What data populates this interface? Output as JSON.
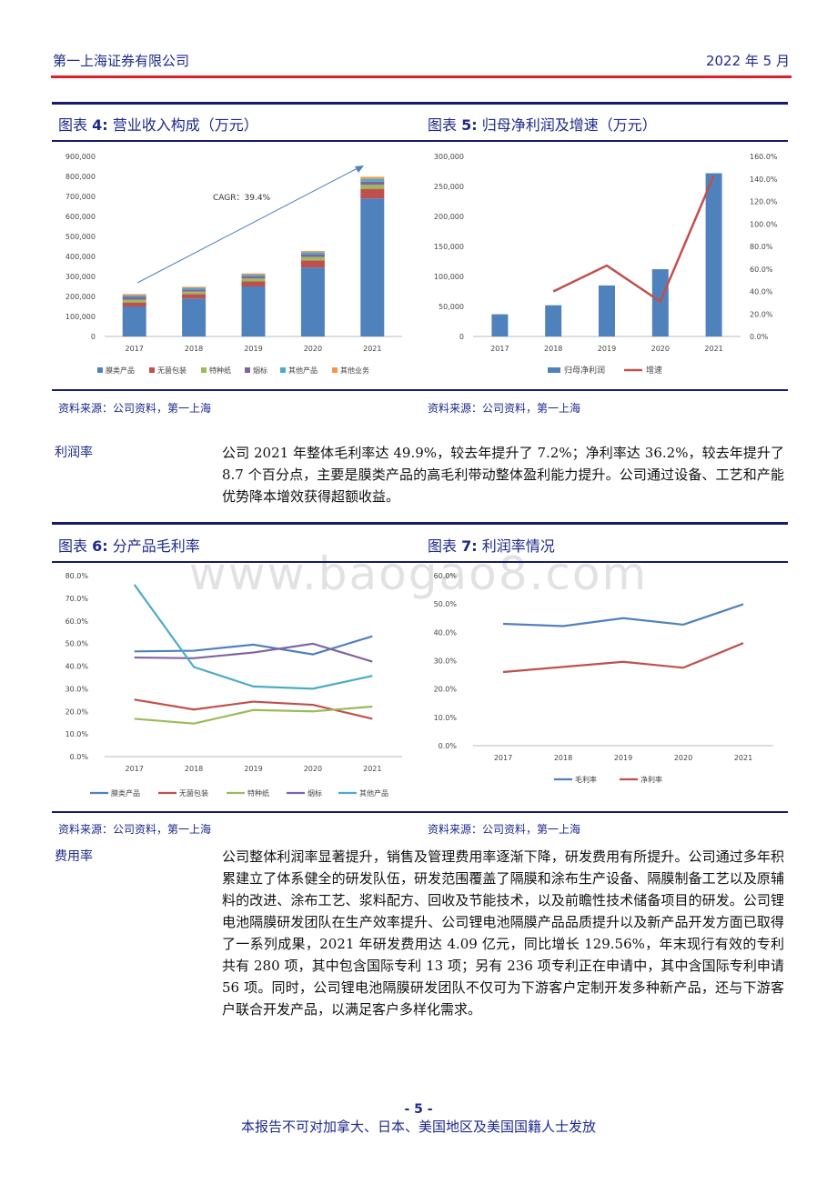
{
  "header": {
    "company": "第一上海证券有限公司",
    "date": "2022 年 5 月"
  },
  "watermark": "www.baogao8.com",
  "figures": [
    {
      "num": "4:",
      "label_prefix": "图表 ",
      "title": "营业收入构成（万元）",
      "source": "资料来源：公司资料，第一上海",
      "annotation": "CAGR：39.4%"
    },
    {
      "num": "5:",
      "label_prefix": "图表 ",
      "title": "归母净利润及增速（万元）",
      "source": "资料来源：公司资料，第一上海"
    },
    {
      "num": "6:",
      "label_prefix": "图表 ",
      "title": "分产品毛利率",
      "source": "资料来源：公司资料，第一上海"
    },
    {
      "num": "7:",
      "label_prefix": "图表 ",
      "title": "利润率情况",
      "source": "资料来源：公司资料，第一上海"
    }
  ],
  "sections": {
    "profit": {
      "label": "利润率",
      "text": "公司 2021 年整体毛利率达 49.9%，较去年提升了 7.2%；净利率达 36.2%，较去年提升了 8.7 个百分点，主要是膜类产品的高毛利带动整体盈利能力提升。公司通过设备、工艺和产能优势降本增效获得超额收益。"
    },
    "expense": {
      "label": "费用率",
      "text": "公司整体利润率显著提升，销售及管理费用率逐渐下降，研发费用有所提升。公司通过多年积累建立了体系健全的研发队伍，研发范围覆盖了隔膜和涂布生产设备、隔膜制备工艺以及原辅料的改进、涂布工艺、浆料配方、回收及节能技术，以及前瞻性技术储备项目的研发。公司锂电池隔膜研发团队在生产效率提升、公司锂电池隔膜产品品质提升以及新产品开发方面已取得了一系列成果，2021 年研发费用达 4.09 亿元，同比增长 129.56%，年末现行有效的专利共有 280 项，其中包含国际专利 13 项；另有 236 项专利正在申请中，其中含国际专利申请 56 项。同时，公司锂电池隔膜研发团队不仅可为下游客户定制开发多种新产品，还与下游客户联合开发产品，以满足客户多样化需求。"
    }
  },
  "footer": {
    "page": "- 5 -",
    "notice": "本报告不可对加拿大、日本、美国地区及美国国籍人士发放"
  },
  "chart_data": [
    {
      "type": "bar",
      "stacked": true,
      "categories": [
        "2017",
        "2018",
        "2019",
        "2020",
        "2021"
      ],
      "ylim": [
        0,
        900000
      ],
      "yticks": [
        "0",
        "100,000",
        "200,000",
        "300,000",
        "400,000",
        "500,000",
        "600,000",
        "700,000",
        "800,000",
        "900,000"
      ],
      "series": [
        {
          "name": "膜类产品",
          "color": "#4f81bd",
          "values": [
            150000,
            190000,
            250000,
            345000,
            690000
          ]
        },
        {
          "name": "无菌包装",
          "color": "#c0504d",
          "values": [
            20000,
            22000,
            25000,
            35000,
            48000
          ]
        },
        {
          "name": "特种纸",
          "color": "#9bbb59",
          "values": [
            14000,
            12000,
            15000,
            17000,
            20000
          ]
        },
        {
          "name": "烟标",
          "color": "#8064a2",
          "values": [
            14000,
            11000,
            11000,
            14000,
            16000
          ]
        },
        {
          "name": "其他产品",
          "color": "#4bacc6",
          "values": [
            8000,
            8000,
            8000,
            10000,
            14000
          ]
        },
        {
          "name": "其他业务",
          "color": "#f79646",
          "values": [
            6000,
            5000,
            6000,
            6000,
            10000
          ]
        }
      ]
    },
    {
      "type": "bar",
      "categories": [
        "2017",
        "2018",
        "2019",
        "2020",
        "2021"
      ],
      "ylim": [
        0,
        300000
      ],
      "yticks": [
        "0",
        "50,000",
        "100,000",
        "150,000",
        "200,000",
        "250,000",
        "300,000"
      ],
      "y2lim": [
        0,
        160
      ],
      "y2ticks": [
        "0.0%",
        "20.0%",
        "40.0%",
        "60.0%",
        "80.0%",
        "100.0%",
        "120.0%",
        "140.0%",
        "160.0%"
      ],
      "series": [
        {
          "name": "归母净利润",
          "color": "#4f81bd",
          "kind": "bar",
          "values": [
            37000,
            52000,
            85000,
            112000,
            272000
          ]
        },
        {
          "name": "增速",
          "color": "#c0504d",
          "kind": "line",
          "axis": "right",
          "values": [
            null,
            40,
            63,
            31,
            143
          ]
        }
      ]
    },
    {
      "type": "line",
      "categories": [
        "2017",
        "2018",
        "2019",
        "2020",
        "2021"
      ],
      "ylim": [
        0,
        80
      ],
      "yticks": [
        "0.0%",
        "10.0%",
        "20.0%",
        "30.0%",
        "40.0%",
        "50.0%",
        "60.0%",
        "70.0%",
        "80.0%"
      ],
      "series": [
        {
          "name": "膜类产品",
          "color": "#4f81bd",
          "values": [
            46.5,
            46.8,
            49.5,
            45.2,
            53.2
          ]
        },
        {
          "name": "无菌包装",
          "color": "#c0504d",
          "values": [
            25.2,
            20.8,
            24.3,
            22.9,
            16.7
          ]
        },
        {
          "name": "特种纸",
          "color": "#9bbb59",
          "values": [
            16.7,
            14.6,
            20.6,
            20.0,
            22.1
          ]
        },
        {
          "name": "烟标",
          "color": "#8064a2",
          "values": [
            43.8,
            43.5,
            46.0,
            49.9,
            42.0
          ]
        },
        {
          "name": "其他产品",
          "color": "#4bacc6",
          "values": [
            76.0,
            39.6,
            31.0,
            30.0,
            35.7
          ]
        }
      ]
    },
    {
      "type": "line",
      "categories": [
        "2017",
        "2018",
        "2019",
        "2020",
        "2021"
      ],
      "ylim": [
        0,
        60
      ],
      "yticks": [
        "0.0%",
        "10.0%",
        "20.0%",
        "30.0%",
        "40.0%",
        "50.0%",
        "60.0%"
      ],
      "series": [
        {
          "name": "毛利率",
          "color": "#4f81bd",
          "values": [
            43.0,
            42.2,
            45.0,
            42.7,
            49.9
          ]
        },
        {
          "name": "净利率",
          "color": "#c0504d",
          "values": [
            26.0,
            27.8,
            29.6,
            27.5,
            36.2
          ]
        }
      ]
    }
  ]
}
